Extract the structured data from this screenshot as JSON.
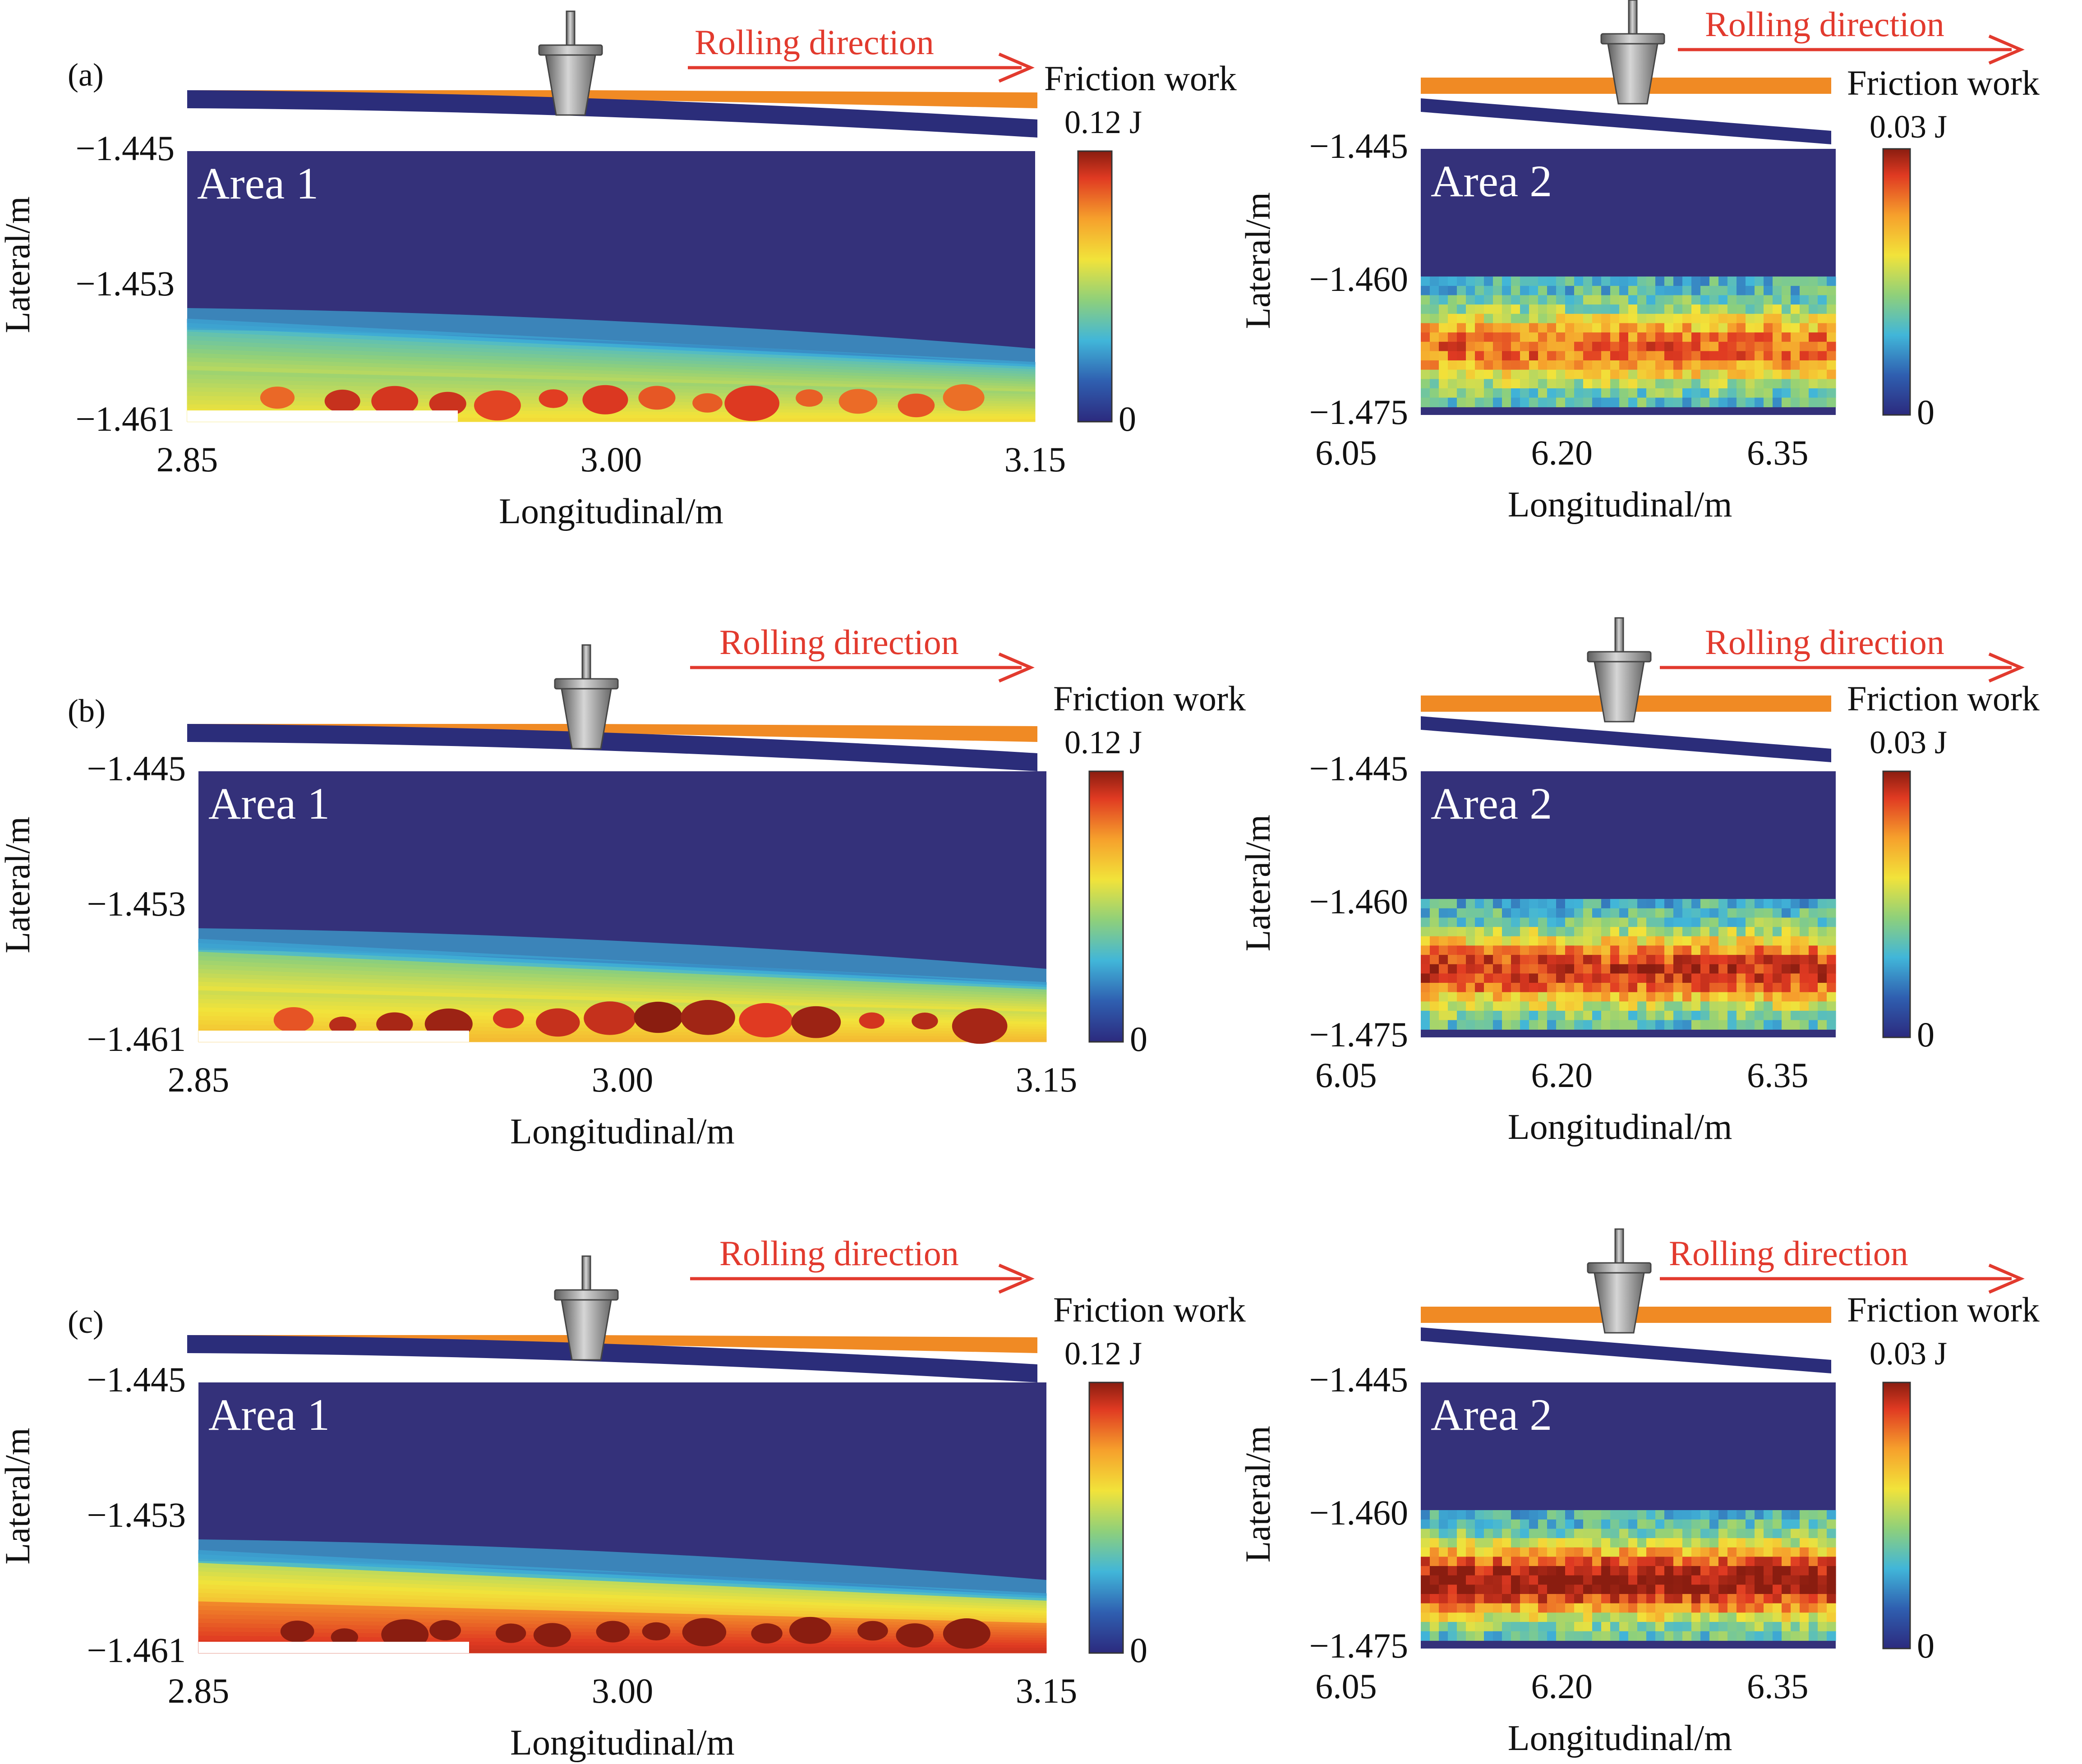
{
  "colors": {
    "background_field": "#34317a",
    "rail_strip": "#2b2d7a",
    "wheel_strip": "#f08a24",
    "arrow": "#e23a2e",
    "colormap": [
      "#2c2a7e",
      "#2f5fb0",
      "#41b6d9",
      "#8fd07a",
      "#f2e33a",
      "#f6a02c",
      "#e03a22",
      "#8a1d10"
    ]
  },
  "icons": {
    "wheel": "wheel-icon",
    "arrow": "arrow-right-icon"
  },
  "chart_data": [
    {
      "panel": "(a)",
      "type": "heatmap",
      "area_label": "Area 1",
      "annotation": "Rolling direction",
      "colorbar_title": "Friction work",
      "colorbar_max": "0.12 J",
      "colorbar_min": "0",
      "xlabel": "Longitudinal/m",
      "ylabel": "Lateral/m",
      "xticks": [
        "2.85",
        "3.00",
        "3.15"
      ],
      "yticks": [
        "-1.445",
        "-1.453",
        "-1.461"
      ],
      "xlim": [
        2.85,
        3.15
      ],
      "ylim": [
        -1.461,
        -1.445
      ],
      "zlim": [
        0,
        0.12
      ],
      "band_levels": [
        0.55,
        0.45,
        0.35
      ]
    },
    {
      "panel": "",
      "type": "heatmap",
      "area_label": "Area 2",
      "annotation": "Rolling direction",
      "colorbar_title": "Friction work",
      "colorbar_max": "0.03 J",
      "colorbar_min": "0",
      "xlabel": "Longitudinal/m",
      "ylabel": "Lateral/m",
      "xticks": [
        "6.05",
        "6.20",
        "6.35"
      ],
      "yticks": [
        "-1.445",
        "-1.460",
        "-1.475"
      ],
      "xlim": [
        6.05,
        6.4
      ],
      "ylim": [
        -1.475,
        -1.445
      ],
      "zlim": [
        0,
        0.03
      ],
      "band_levels": [
        0.62,
        0.72,
        0.8
      ]
    },
    {
      "panel": "(b)",
      "type": "heatmap",
      "area_label": "Area 1",
      "annotation": "Rolling direction",
      "colorbar_title": "Friction work",
      "colorbar_max": "0.12 J",
      "colorbar_min": "0",
      "xlabel": "Longitudinal/m",
      "ylabel": "Lateral/m",
      "xticks": [
        "2.85",
        "3.00",
        "3.15"
      ],
      "yticks": [
        "-1.445",
        "-1.453",
        "-1.461"
      ],
      "xlim": [
        2.85,
        3.15
      ],
      "ylim": [
        -1.461,
        -1.445
      ],
      "zlim": [
        0,
        0.12
      ],
      "band_levels": [
        0.62,
        0.52,
        0.42
      ]
    },
    {
      "panel": "",
      "type": "heatmap",
      "area_label": "Area 2",
      "annotation": "Rolling direction",
      "colorbar_title": "Friction work",
      "colorbar_max": "0.03 J",
      "colorbar_min": "0",
      "xlabel": "Longitudinal/m",
      "ylabel": "Lateral/m",
      "xticks": [
        "6.05",
        "6.20",
        "6.35"
      ],
      "yticks": [
        "-1.445",
        "-1.460",
        "-1.475"
      ],
      "xlim": [
        6.05,
        6.4
      ],
      "ylim": [
        -1.475,
        -1.445
      ],
      "zlim": [
        0,
        0.03
      ],
      "band_levels": [
        0.72,
        0.8,
        0.85
      ]
    },
    {
      "panel": "(c)",
      "type": "heatmap",
      "area_label": "Area 1",
      "annotation": "Rolling direction",
      "colorbar_title": "Friction work",
      "colorbar_max": "0.12 J",
      "colorbar_min": "0",
      "xlabel": "Longitudinal/m",
      "ylabel": "Lateral/m",
      "xticks": [
        "2.85",
        "3.00",
        "3.15"
      ],
      "yticks": [
        "-1.445",
        "-1.453",
        "-1.461"
      ],
      "xlim": [
        2.85,
        3.15
      ],
      "ylim": [
        -1.461,
        -1.445
      ],
      "zlim": [
        0,
        0.12
      ],
      "band_levels": [
        0.85,
        0.75,
        0.5
      ]
    },
    {
      "panel": "",
      "type": "heatmap",
      "area_label": "Area 2",
      "annotation": "Rolling direction",
      "colorbar_title": "Friction work",
      "colorbar_max": "0.03 J",
      "colorbar_min": "0",
      "xlabel": "Longitudinal/m",
      "ylabel": "Lateral/m",
      "xticks": [
        "6.05",
        "6.20",
        "6.35"
      ],
      "yticks": [
        "-1.445",
        "-1.460",
        "-1.475"
      ],
      "xlim": [
        6.05,
        6.4
      ],
      "ylim": [
        -1.475,
        -1.445
      ],
      "zlim": [
        0,
        0.03
      ],
      "band_levels": [
        0.82,
        0.88,
        0.9
      ]
    }
  ]
}
